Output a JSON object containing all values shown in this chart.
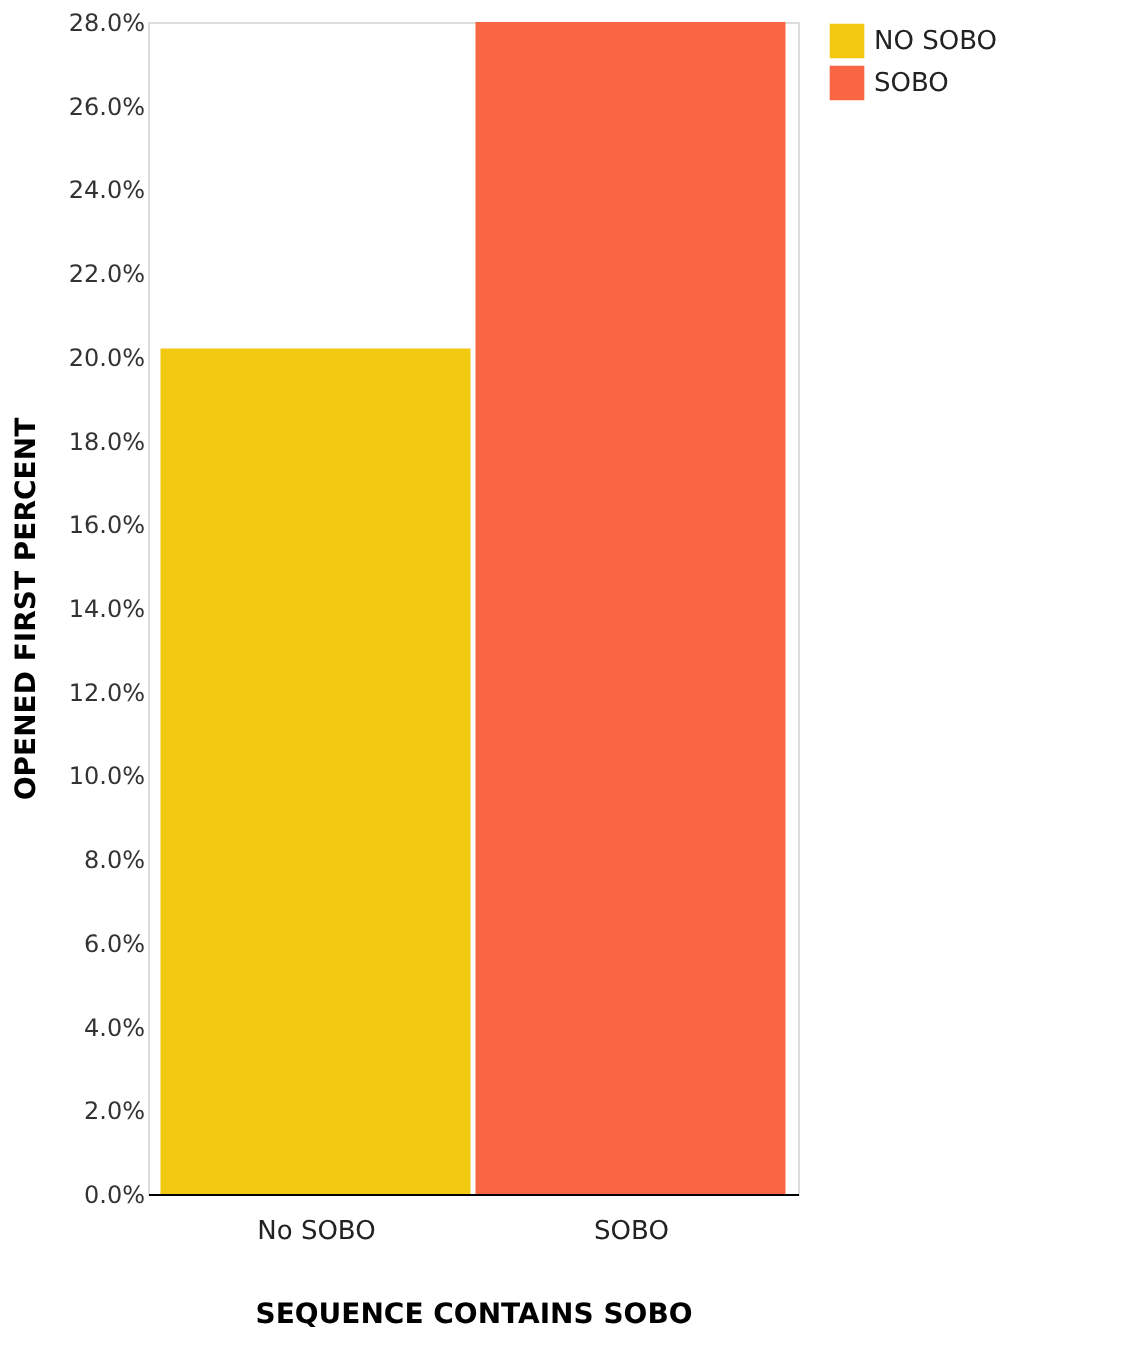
{
  "chart_data": {
    "type": "bar",
    "xlabel": "SEQUENCE CONTAINS SOBO",
    "ylabel": "OPENED FIRST PERCENT",
    "categories": [
      "No SOBO",
      "SOBO"
    ],
    "series": [
      {
        "name": "NO SOBO",
        "color": "#f3c811",
        "values": [
          20.2,
          null
        ]
      },
      {
        "name": "SOBO",
        "color": "#f96643",
        "values": [
          null,
          28.0
        ]
      }
    ],
    "ylim": [
      0,
      28
    ],
    "yticks": [
      {
        "value": 0,
        "label": "0.0%"
      },
      {
        "value": 2,
        "label": "2.0%"
      },
      {
        "value": 4,
        "label": "4.0%"
      },
      {
        "value": 6,
        "label": "6.0%"
      },
      {
        "value": 8,
        "label": "8.0%"
      },
      {
        "value": 10,
        "label": "10.0%"
      },
      {
        "value": 12,
        "label": "12.0%"
      },
      {
        "value": 14,
        "label": "14.0%"
      },
      {
        "value": 16,
        "label": "16.0%"
      },
      {
        "value": 18,
        "label": "18.0%"
      },
      {
        "value": 20,
        "label": "20.0%"
      },
      {
        "value": 22,
        "label": "22.0%"
      },
      {
        "value": 24,
        "label": "24.0%"
      },
      {
        "value": 26,
        "label": "26.0%"
      },
      {
        "value": 28,
        "label": "28.0%"
      }
    ],
    "grid": false,
    "legend": "top right"
  }
}
